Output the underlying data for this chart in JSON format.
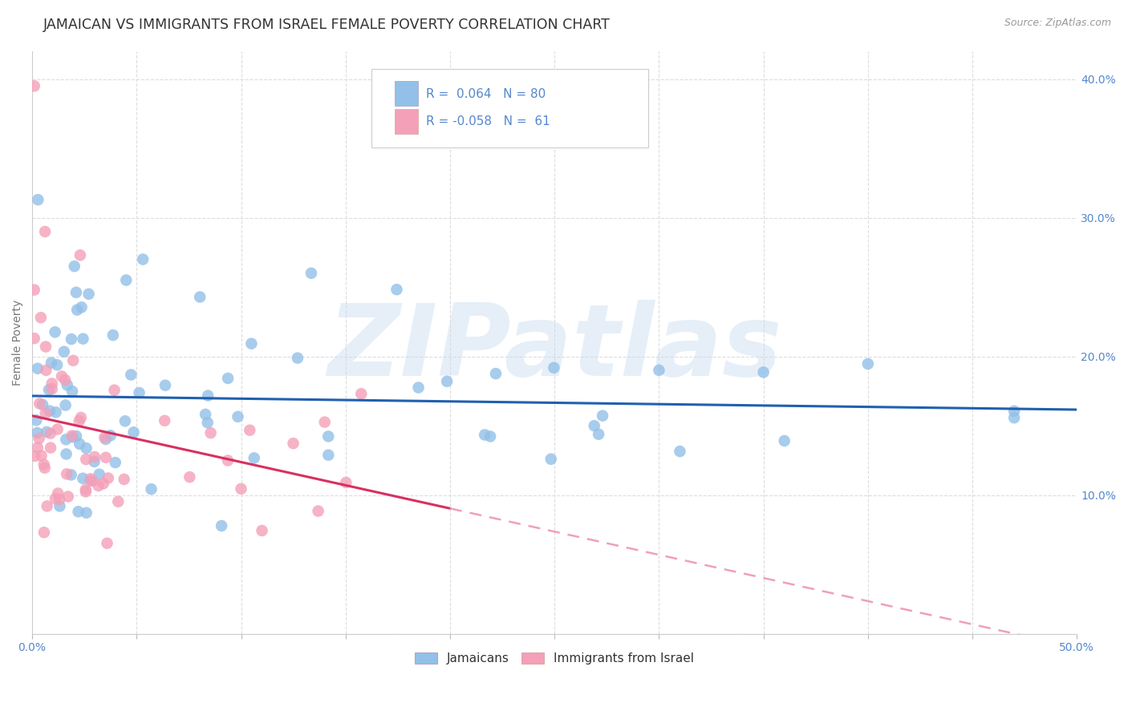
{
  "title": "JAMAICAN VS IMMIGRANTS FROM ISRAEL FEMALE POVERTY CORRELATION CHART",
  "source": "Source: ZipAtlas.com",
  "ylabel": "Female Poverty",
  "xlim": [
    0,
    0.5
  ],
  "ylim": [
    0,
    0.42
  ],
  "jamaican_color": "#92C0E8",
  "israel_color": "#F4A0B8",
  "jamaican_line_color": "#2060B0",
  "israel_line_color": "#D83060",
  "israel_dashed_color": "#F0A0B8",
  "watermark": "ZIPatlas",
  "R_jamaican": 0.064,
  "N_jamaican": 80,
  "R_israel": -0.058,
  "N_israel": 61,
  "legend_labels": [
    "Jamaicans",
    "Immigrants from Israel"
  ],
  "background_color": "#FFFFFF",
  "grid_color": "#DDDDDD",
  "title_color": "#333333",
  "tick_color": "#5588CC",
  "title_fontsize": 12.5,
  "axis_label_fontsize": 10,
  "tick_fontsize": 10,
  "source_fontsize": 9
}
